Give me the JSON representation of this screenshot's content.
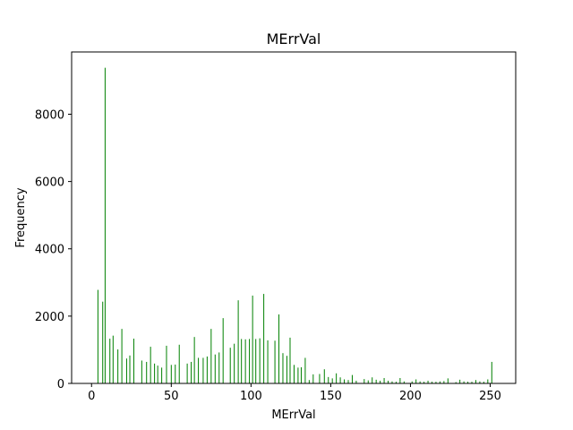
{
  "chart_data": {
    "type": "bar",
    "title": "MErrVal",
    "xlabel": "MErrVal",
    "ylabel": "Frequency",
    "xlim": [
      -12.5,
      266.0
    ],
    "ylim": [
      0,
      9850
    ],
    "x_ticks": [
      0,
      50,
      100,
      150,
      200,
      250
    ],
    "y_ticks": [
      0,
      2000,
      4000,
      6000,
      8000
    ],
    "grid": false,
    "bar_color": "#008000",
    "series": [
      {
        "x": [
          4,
          7,
          8.5,
          11.5,
          13.5,
          16.5,
          19,
          22,
          24,
          26.5,
          31.5,
          34.5,
          37,
          39.5,
          41.5,
          44,
          47,
          50,
          52.5,
          55,
          60,
          62.5,
          64.5,
          67,
          70,
          72.5,
          75,
          77.5,
          80,
          82.5,
          87,
          89.5,
          92,
          94,
          96.5,
          99,
          101,
          103,
          105.5,
          108,
          110.5,
          115,
          117.5,
          120,
          122.5,
          124.5,
          127,
          129.5,
          131.5,
          134,
          136.5,
          139,
          143,
          146,
          148.5,
          151,
          153.5,
          156,
          158.5,
          161,
          163.5,
          166,
          171,
          173.5,
          176,
          178.5,
          181,
          183.5,
          186,
          188.5,
          191,
          193.5,
          196,
          201,
          203.5,
          206,
          208.5,
          211,
          213.5,
          216,
          218.5,
          221,
          223.5,
          228.5,
          231,
          233.5,
          236,
          238.5,
          241,
          243.5,
          246,
          248.5,
          251
        ],
        "values": [
          2780,
          2430,
          9380,
          1330,
          1420,
          1010,
          1620,
          740,
          830,
          1330,
          680,
          640,
          1090,
          590,
          530,
          470,
          1120,
          550,
          560,
          1150,
          590,
          640,
          1380,
          760,
          760,
          800,
          1620,
          860,
          920,
          1940,
          1060,
          1180,
          2470,
          1320,
          1310,
          1320,
          2610,
          1320,
          1340,
          2660,
          1280,
          1270,
          2050,
          900,
          820,
          1360,
          550,
          470,
          480,
          760,
          100,
          270,
          280,
          420,
          190,
          150,
          300,
          180,
          120,
          100,
          250,
          80,
          130,
          90,
          180,
          110,
          80,
          160,
          80,
          60,
          50,
          160,
          60,
          60,
          120,
          60,
          50,
          80,
          50,
          50,
          60,
          70,
          150,
          40,
          110,
          60,
          50,
          50,
          100,
          60,
          50,
          120,
          640
        ]
      }
    ]
  }
}
